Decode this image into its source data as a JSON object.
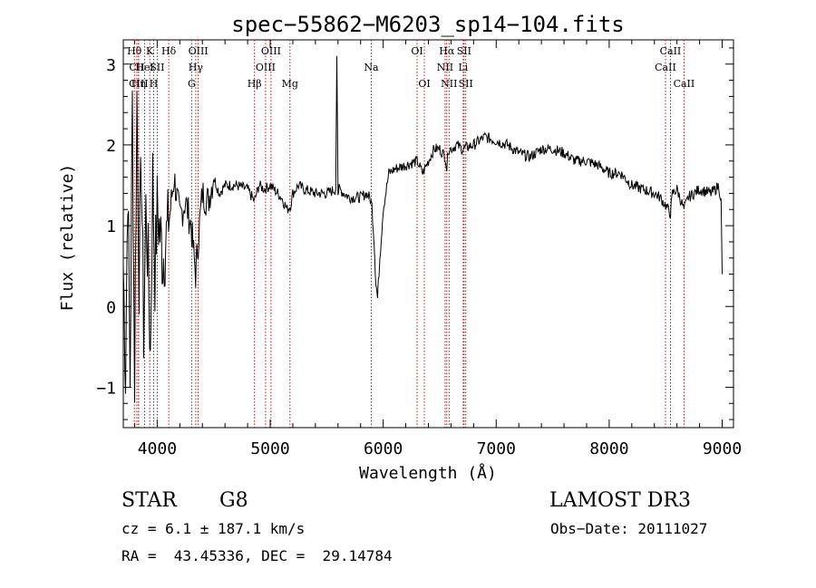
{
  "chart_data": {
    "type": "line",
    "title": "spec−55862−M6203_sp14−104.fits",
    "xlabel": "Wavelength (Å)",
    "ylabel": "Flux (relative)",
    "xlim": [
      3700,
      9100
    ],
    "ylim": [
      -1.5,
      3.3
    ],
    "xticks": [
      4000,
      5000,
      6000,
      7000,
      8000,
      9000
    ],
    "yticks": [
      -1,
      0,
      1,
      2,
      3
    ],
    "ytick_labels": [
      "−1",
      "0",
      "1",
      "2",
      "3"
    ],
    "grid": false,
    "series": [
      {
        "name": "flux",
        "x": [
          3700,
          3720,
          3740,
          3760,
          3780,
          3800,
          3820,
          3840,
          3860,
          3880,
          3900,
          3920,
          3940,
          3960,
          3980,
          4000,
          4050,
          4100,
          4150,
          4200,
          4250,
          4300,
          4340,
          4380,
          4400,
          4450,
          4500,
          4550,
          4600,
          4700,
          4800,
          4860,
          4900,
          4950,
          5000,
          5100,
          5150,
          5180,
          5200,
          5250,
          5300,
          5400,
          5500,
          5580,
          5590,
          5600,
          5610,
          5700,
          5800,
          5850,
          5880,
          5900,
          5920,
          5935,
          5950,
          5970,
          6000,
          6050,
          6100,
          6200,
          6300,
          6350,
          6400,
          6450,
          6500,
          6550,
          6563,
          6575,
          6600,
          6650,
          6700,
          6800,
          6900,
          7000,
          7100,
          7200,
          7300,
          7400,
          7500,
          7600,
          7700,
          7800,
          7900,
          8000,
          8100,
          8200,
          8300,
          8400,
          8450,
          8500,
          8542,
          8560,
          8600,
          8662,
          8700,
          8800,
          8900,
          8940,
          8970,
          8990,
          9000
        ],
        "values": [
          0.5,
          -0.8,
          1.6,
          -0.9,
          2.5,
          -0.9,
          2.6,
          0.4,
          1.8,
          -0.3,
          1.2,
          0.5,
          -0.6,
          1.6,
          0.4,
          1.2,
          0.6,
          1.0,
          1.6,
          1.1,
          1.3,
          1.0,
          0.4,
          1.1,
          1.4,
          1.3,
          1.6,
          1.4,
          1.5,
          1.5,
          1.45,
          1.3,
          1.5,
          1.45,
          1.5,
          1.35,
          1.2,
          1.25,
          1.4,
          1.5,
          1.45,
          1.4,
          1.4,
          1.45,
          3.1,
          1.4,
          1.45,
          1.35,
          1.35,
          1.4,
          1.35,
          1.25,
          0.8,
          0.3,
          0.1,
          0.6,
          1.2,
          1.65,
          1.7,
          1.75,
          1.8,
          1.65,
          1.8,
          1.95,
          1.95,
          1.85,
          1.7,
          1.95,
          1.95,
          2.0,
          1.95,
          2.0,
          2.1,
          2.05,
          2.0,
          1.9,
          1.85,
          1.95,
          1.95,
          1.9,
          1.8,
          1.8,
          1.75,
          1.65,
          1.65,
          1.5,
          1.45,
          1.4,
          1.35,
          1.25,
          1.15,
          1.4,
          1.45,
          1.2,
          1.35,
          1.45,
          1.4,
          1.45,
          1.5,
          1.3,
          0.4
        ]
      }
    ],
    "lines": [
      {
        "label": "Hθ",
        "x": 3798,
        "row": 0
      },
      {
        "label": "CII",
        "x": 3820,
        "row": 1
      },
      {
        "label": "CIII",
        "x": 3835,
        "row": 2
      },
      {
        "label": "Hη",
        "x": 3835,
        "row": 2
      },
      {
        "label": "HeI",
        "x": 3889,
        "row": 1
      },
      {
        "label": "K",
        "x": 3934,
        "row": 0
      },
      {
        "label": "SII",
        "x": 4000,
        "row": 1
      },
      {
        "label": "H",
        "x": 3969,
        "row": 2
      },
      {
        "label": "Hδ",
        "x": 4102,
        "row": 0
      },
      {
        "label": "OIII",
        "x": 4363,
        "row": 0
      },
      {
        "label": "Hγ",
        "x": 4341,
        "row": 1
      },
      {
        "label": "G",
        "x": 4305,
        "row": 2
      },
      {
        "label": "Hβ",
        "x": 4861,
        "row": 2
      },
      {
        "label": "OIII",
        "x": 4959,
        "row": 1
      },
      {
        "label": "OIII",
        "x": 5007,
        "row": 0
      },
      {
        "label": "Mg",
        "x": 5175,
        "row": 2
      },
      {
        "label": "Na",
        "x": 5894,
        "row": 1
      },
      {
        "label": "OI",
        "x": 6300,
        "row": 0
      },
      {
        "label": "OI",
        "x": 6364,
        "row": 2
      },
      {
        "label": "NII",
        "x": 6548,
        "row": 1
      },
      {
        "label": "Hα",
        "x": 6563,
        "row": 0
      },
      {
        "label": "NII",
        "x": 6583,
        "row": 2
      },
      {
        "label": "SII",
        "x": 6716,
        "row": 0
      },
      {
        "label": "Li",
        "x": 6708,
        "row": 1
      },
      {
        "label": "SII",
        "x": 6731,
        "row": 2
      },
      {
        "label": "CaII",
        "x": 8498,
        "row": 1
      },
      {
        "label": "CaII",
        "x": 8542,
        "row": 0
      },
      {
        "label": "CaII",
        "x": 8662,
        "row": 2
      }
    ],
    "line_color": "#b40000"
  },
  "info": {
    "class": "STAR",
    "subclass": "G8",
    "survey": "LAMOST DR3",
    "cz": "cz = 6.1 ± 187.1 km/s",
    "obs_date": "Obs−Date: 20111027",
    "coords": "RA =  43.45336, DEC =  29.14784"
  }
}
